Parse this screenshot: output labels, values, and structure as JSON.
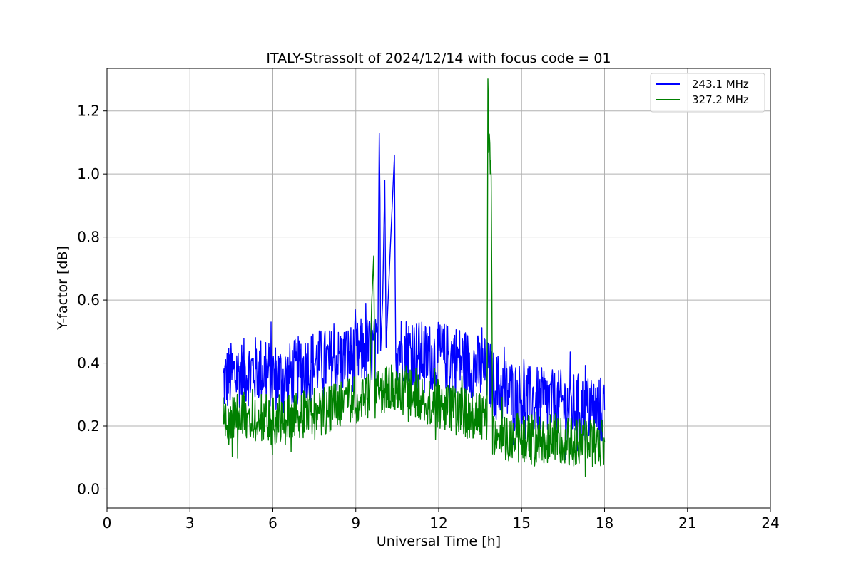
{
  "chart_data": {
    "type": "line",
    "title": "ITALY-Strassolt of 2024/12/14 with focus code = 01",
    "xlabel": "Universal Time [h]",
    "ylabel": "Y-factor [dB]",
    "xlim": [
      0,
      24
    ],
    "ylim": [
      -0.06,
      1.335
    ],
    "xticks": [
      0,
      3,
      6,
      9,
      12,
      15,
      18,
      21,
      24
    ],
    "xtick_labels": [
      "0",
      "3",
      "6",
      "9",
      "12",
      "15",
      "18",
      "21",
      "24"
    ],
    "yticks": [
      0.0,
      0.2,
      0.4,
      0.6,
      0.8,
      1.0,
      1.2
    ],
    "ytick_labels": [
      "0.0",
      "0.2",
      "0.4",
      "0.6",
      "0.8",
      "1.0",
      "1.2"
    ],
    "grid": true,
    "legend_position": "top-right",
    "series": [
      {
        "name": "243.1 MHz",
        "color": "#0000ff",
        "x": [
          4.2,
          4.5,
          5.0,
          5.5,
          6.0,
          6.5,
          7.0,
          7.5,
          8.0,
          8.5,
          9.0,
          9.3,
          9.6,
          9.8,
          9.85,
          9.9,
          10.05,
          10.1,
          10.4,
          10.45,
          10.5,
          11.0,
          11.5,
          12.0,
          12.5,
          13.0,
          13.5,
          13.8,
          14.0,
          14.5,
          15.0,
          15.5,
          16.0,
          16.5,
          17.0,
          17.5,
          18.0
        ],
        "y": [
          0.34,
          0.36,
          0.37,
          0.38,
          0.36,
          0.35,
          0.38,
          0.4,
          0.4,
          0.41,
          0.42,
          0.44,
          0.44,
          0.43,
          1.13,
          0.44,
          0.98,
          0.45,
          1.06,
          0.46,
          0.45,
          0.44,
          0.42,
          0.42,
          0.42,
          0.4,
          0.38,
          0.37,
          0.33,
          0.31,
          0.29,
          0.28,
          0.27,
          0.27,
          0.26,
          0.25,
          0.25
        ]
      },
      {
        "name": "327.2 MHz",
        "color": "#008000",
        "x": [
          4.2,
          4.5,
          5.0,
          5.5,
          6.0,
          6.5,
          7.0,
          7.5,
          8.0,
          8.5,
          9.0,
          9.5,
          9.65,
          9.7,
          10.0,
          10.5,
          11.0,
          11.5,
          12.0,
          12.5,
          13.0,
          13.5,
          13.75,
          13.78,
          13.85,
          13.9,
          13.95,
          14.0,
          14.5,
          15.0,
          15.5,
          16.0,
          16.5,
          17.0,
          17.5,
          18.0
        ],
        "y": [
          0.22,
          0.22,
          0.23,
          0.23,
          0.22,
          0.22,
          0.23,
          0.24,
          0.25,
          0.27,
          0.28,
          0.29,
          0.74,
          0.29,
          0.31,
          0.32,
          0.31,
          0.29,
          0.27,
          0.25,
          0.24,
          0.23,
          0.22,
          1.27,
          1.02,
          0.99,
          0.22,
          0.18,
          0.17,
          0.16,
          0.16,
          0.16,
          0.16,
          0.15,
          0.15,
          0.15
        ]
      }
    ]
  }
}
